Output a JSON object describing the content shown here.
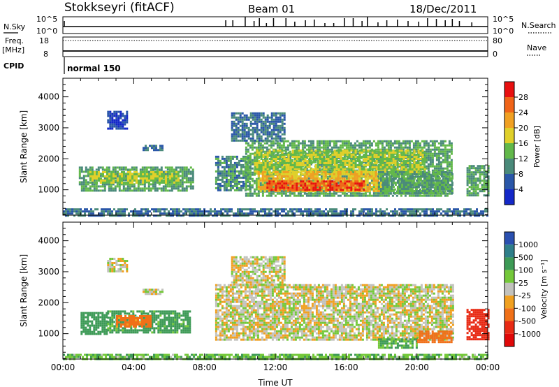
{
  "header": {
    "station": "Stokkseyri (fitACF)",
    "beam": "Beam 01",
    "date": "18/Dec/2011"
  },
  "summary_panel": {
    "nsky_label": "N.Sky",
    "nsky_ticks": [
      "10^5",
      "10^0"
    ],
    "nsearch_label": "N.Search",
    "nsearch_ticks": [
      "10^5",
      "10^0"
    ],
    "freq_label_1": "Freq.",
    "freq_label_2": "[MHz]",
    "freq_ticks": [
      "18",
      "8"
    ],
    "nave_label": "Nave",
    "nave_ticks": [
      "80",
      "0"
    ],
    "cpid_label": "CPID",
    "cpid_value": "normal 150"
  },
  "colors": {
    "power": [
      "#1428c8",
      "#2a57a8",
      "#4a8a7a",
      "#62b84a",
      "#e0d02a",
      "#f0a022",
      "#f06418",
      "#e81010"
    ],
    "velocity": [
      "#2a50b0",
      "#2f7f8a",
      "#3d9a56",
      "#74c83a",
      "#c2c2bd",
      "#f0a020",
      "#f07018",
      "#e82a14",
      "#e00808"
    ]
  },
  "chart_data": [
    {
      "type": "heatmap",
      "panel": "power",
      "ylabel": "Slant Range [km]",
      "xlim": [
        0,
        24
      ],
      "ylim": [
        180,
        4600
      ],
      "yticks": [
        "1000",
        "2000",
        "3000",
        "4000"
      ],
      "colorbar_label": "Power [dB]",
      "colorbar_ticks": [
        "4",
        "8",
        "12",
        "16",
        "20",
        "24",
        "28"
      ],
      "colorbar_range": [
        0,
        32
      ],
      "regions": [
        {
          "x0": 0.9,
          "x1": 7.3,
          "y0": 1000,
          "y1": 1750,
          "level": 12
        },
        {
          "x0": 1.5,
          "x1": 6.5,
          "y0": 1200,
          "y1": 1600,
          "level": 16
        },
        {
          "x0": 4.5,
          "x1": 5.6,
          "y0": 2250,
          "y1": 2450,
          "level": 8
        },
        {
          "x0": 2.5,
          "x1": 3.6,
          "y0": 3000,
          "y1": 3550,
          "level": 4
        },
        {
          "x0": 8.6,
          "x1": 10.6,
          "y0": 950,
          "y1": 2100,
          "level": 10
        },
        {
          "x0": 10.3,
          "x1": 22.0,
          "y0": 800,
          "y1": 2600,
          "level": 12
        },
        {
          "x0": 10.8,
          "x1": 20.5,
          "y0": 1500,
          "y1": 2300,
          "level": 16
        },
        {
          "x0": 11.0,
          "x1": 18.0,
          "y0": 950,
          "y1": 1600,
          "level": 20
        },
        {
          "x0": 11.5,
          "x1": 17.0,
          "y0": 1000,
          "y1": 1300,
          "level": 28
        },
        {
          "x0": 17.8,
          "x1": 22.0,
          "y0": 900,
          "y1": 1600,
          "level": 12
        },
        {
          "x0": 22.8,
          "x1": 24.0,
          "y0": 800,
          "y1": 1800,
          "level": 12
        },
        {
          "x0": 9.5,
          "x1": 12.5,
          "y0": 2600,
          "y1": 3500,
          "level": 8
        },
        {
          "x0": 0.0,
          "x1": 24.0,
          "y0": 180,
          "y1": 400,
          "level": 8
        }
      ]
    },
    {
      "type": "heatmap",
      "panel": "velocity",
      "xlabel": "Time UT",
      "ylabel": "Slant Range [km]",
      "xlim": [
        0,
        24
      ],
      "ylim": [
        180,
        4600
      ],
      "xticks": [
        "00:00",
        "04:00",
        "08:00",
        "12:00",
        "16:00",
        "20:00",
        "00:00"
      ],
      "yticks": [
        "1000",
        "2000",
        "3000",
        "4000"
      ],
      "colorbar_label": "Velocity [m s⁻¹]",
      "colorbar_ticks": [
        "1000",
        "500",
        "100",
        "25",
        "-25",
        "-100",
        "-500",
        "-1000"
      ],
      "regions": [
        {
          "x0": 1.0,
          "x1": 2.5,
          "y0": 1000,
          "y1": 1700,
          "velocity": 300
        },
        {
          "x0": 2.5,
          "x1": 7.2,
          "y0": 1050,
          "y1": 1750,
          "velocity": 150
        },
        {
          "x0": 3.0,
          "x1": 5.0,
          "y0": 1200,
          "y1": 1600,
          "velocity": -150
        },
        {
          "x0": 4.5,
          "x1": 5.6,
          "y0": 2250,
          "y1": 2450,
          "velocity": 0
        },
        {
          "x0": 2.5,
          "x1": 3.6,
          "y0": 3000,
          "y1": 3450,
          "velocity": 0
        },
        {
          "x0": 8.6,
          "x1": 22.0,
          "y0": 800,
          "y1": 2600,
          "velocity": 0
        },
        {
          "x0": 9.5,
          "x1": 12.5,
          "y0": 2600,
          "y1": 3500,
          "velocity": 0
        },
        {
          "x0": 17.8,
          "x1": 20.0,
          "y0": 550,
          "y1": 850,
          "velocity": 120
        },
        {
          "x0": 20.0,
          "x1": 22.0,
          "y0": 700,
          "y1": 1100,
          "velocity": -200
        },
        {
          "x0": 22.8,
          "x1": 24.0,
          "y0": 800,
          "y1": 1800,
          "velocity": -700
        },
        {
          "x0": 0.0,
          "x1": 24.0,
          "y0": 180,
          "y1": 350,
          "velocity": 80
        }
      ]
    }
  ]
}
